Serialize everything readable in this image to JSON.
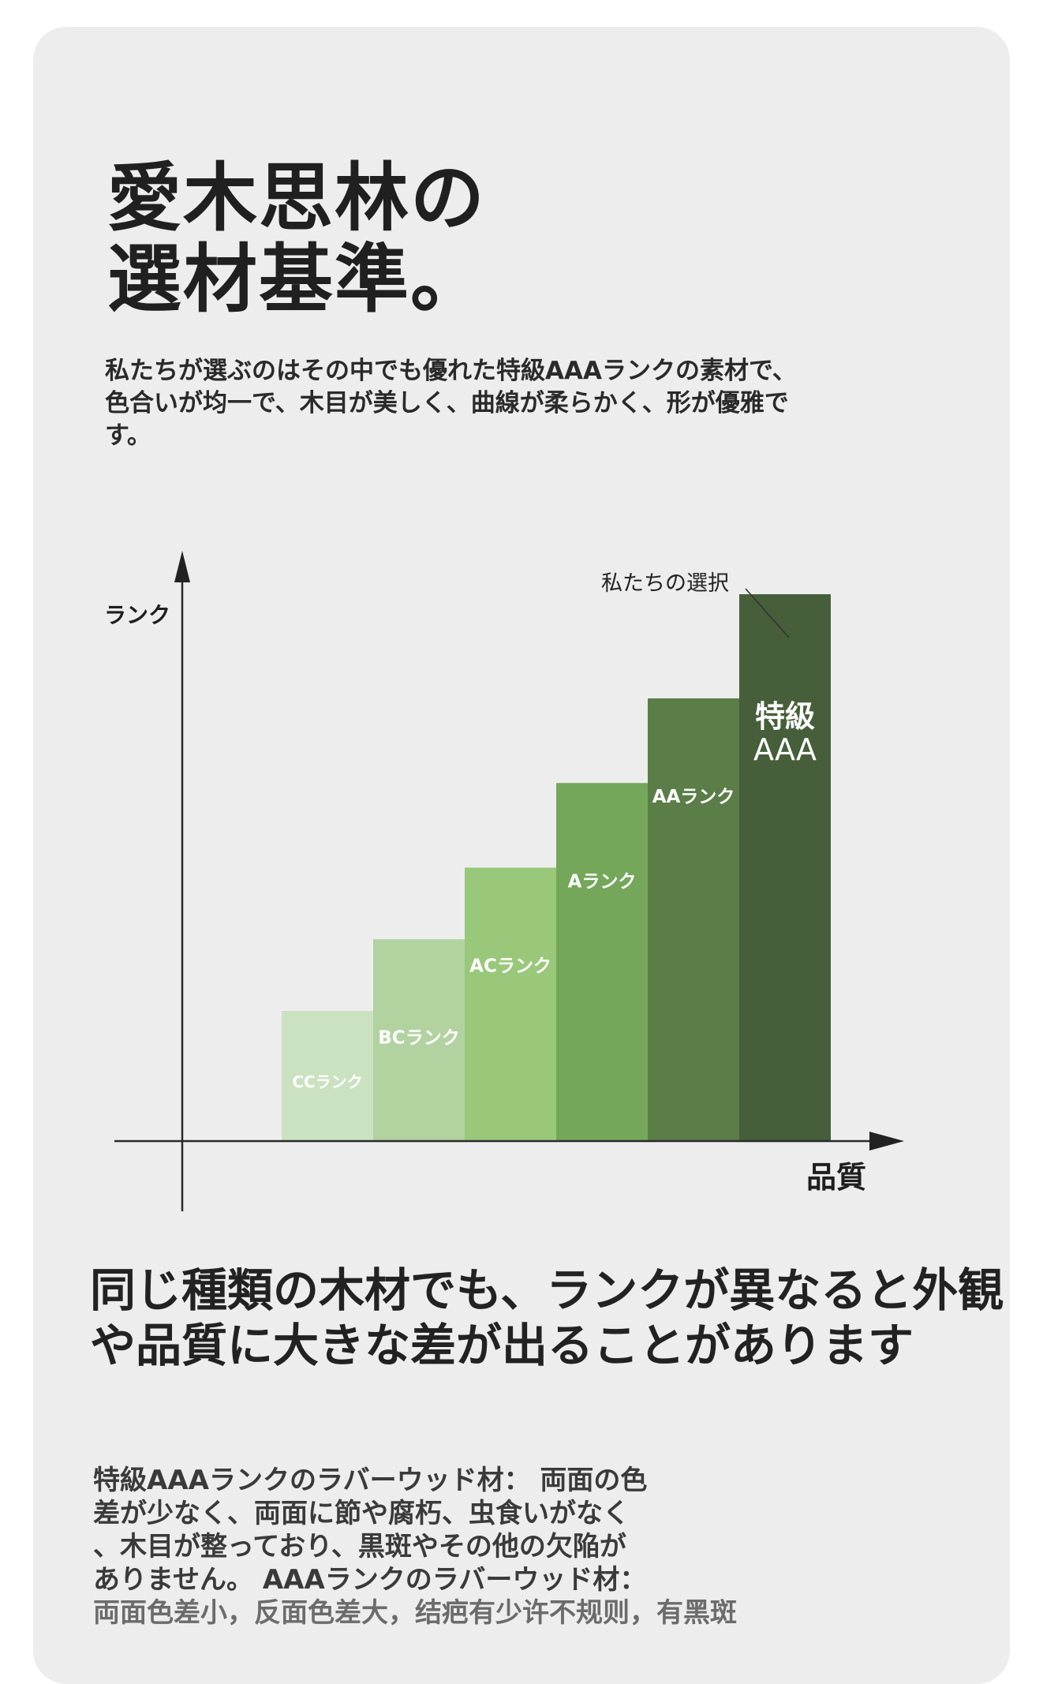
{
  "title_lines": [
    "愛木思林の",
    "選材基準。"
  ],
  "intro_text": "私たちが選ぶのはその中でも優れた特級AAAランクの素材で、色合いが均一で、木目が美しく、曲線が柔らかく、形が優雅です。",
  "chart_data": {
    "type": "bar",
    "categories": [
      "CCランク",
      "BCランク",
      "ACランク",
      "Aランク",
      "AAランク",
      "特級AAA"
    ],
    "values": [
      1,
      1.55,
      2.1,
      2.75,
      3.4,
      4.2
    ],
    "ylabel": "ランク",
    "xlabel": "品質",
    "ylim": [
      0,
      5
    ],
    "annotation": "私たちの選択",
    "annotation_target": "特級AAA",
    "colors": [
      "#cbe2c1",
      "#b2d3a0",
      "#99c87b",
      "#74a75a",
      "#5b7e48",
      "#465f3a"
    ],
    "grid": false
  },
  "section_heading": "同じ種類の木材でも、ランクが異なると外観や品質に大きな差が出ることがあります",
  "description_lines": [
    "特級AAAランクのラバーウッド材： 両面の色",
    "差が少なく、両面に節や腐朽、虫食いがなく",
    "、木目が整っており、黒斑やその他の欠陥が",
    "ありません。 AAAランクのラバーウッド材：",
    "両面色差小，反面色差大，结疤有少许不规则，有黑斑"
  ]
}
